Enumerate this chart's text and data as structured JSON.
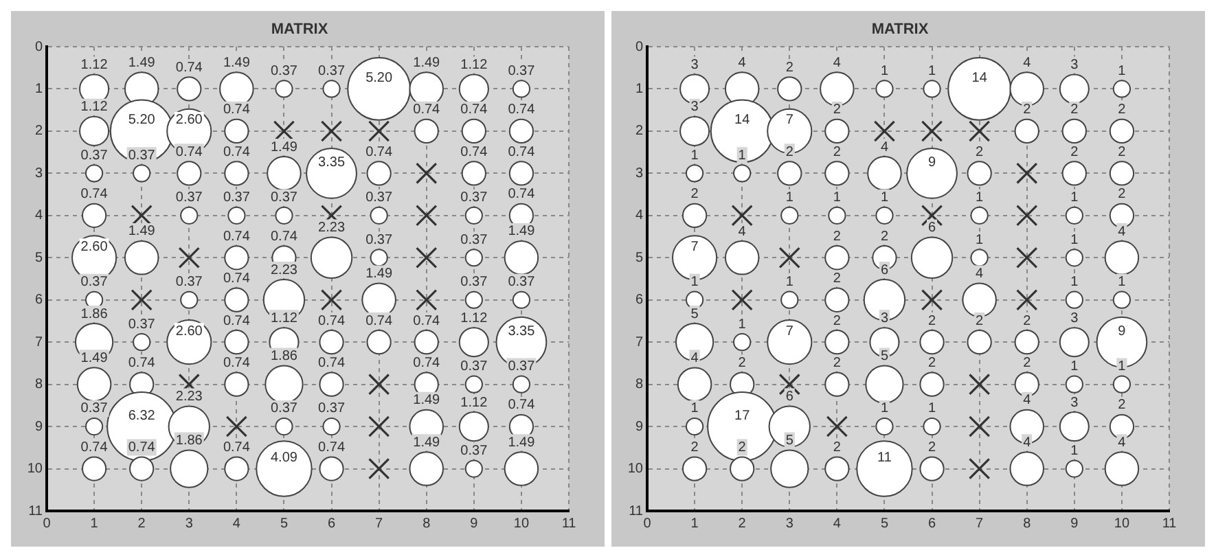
{
  "chart_data": [
    {
      "type": "bubble",
      "title": "MATRIX",
      "xlim": [
        0,
        11
      ],
      "xticks": [
        0,
        1,
        2,
        3,
        4,
        5,
        6,
        7,
        8,
        9,
        10,
        11
      ],
      "ylim": [
        11,
        0
      ],
      "yticks": [
        0,
        1,
        2,
        3,
        4,
        5,
        6,
        7,
        8,
        9,
        10,
        11
      ],
      "grid": true,
      "series": [
        {
          "type": "bubble",
          "marker": "circle",
          "color": "#ffffff",
          "x": [
            1,
            2,
            3,
            4,
            5,
            6,
            7,
            8,
            9,
            10,
            1,
            2,
            3,
            4,
            8,
            9,
            10,
            1,
            2,
            3,
            4,
            5,
            6,
            7,
            9,
            10,
            1,
            3,
            4,
            5,
            7,
            9,
            10,
            1,
            2,
            4,
            5,
            6,
            7,
            9,
            10,
            1,
            3,
            4,
            5,
            7,
            9,
            10,
            1,
            2,
            3,
            4,
            5,
            6,
            7,
            8,
            9,
            10,
            1,
            2,
            4,
            5,
            6,
            8,
            9,
            10,
            1,
            2,
            3,
            5,
            6,
            8,
            9,
            10,
            1,
            2,
            3,
            4,
            5,
            6,
            8,
            9,
            10
          ],
          "values": [
            1,
            1,
            1,
            1,
            1,
            1,
            1,
            1,
            1,
            1,
            2,
            2,
            2,
            2,
            2,
            2,
            2,
            3,
            3,
            3,
            3,
            3,
            3,
            3,
            3,
            3,
            4,
            4,
            4,
            4,
            4,
            4,
            4,
            5,
            5,
            5,
            5,
            5,
            5,
            5,
            5,
            6,
            6,
            6,
            6,
            6,
            6,
            6,
            7,
            7,
            7,
            7,
            7,
            7,
            7,
            7,
            7,
            7,
            8,
            8,
            8,
            8,
            8,
            8,
            8,
            8,
            9,
            9,
            9,
            9,
            9,
            9,
            9,
            9,
            10,
            10,
            10,
            10,
            10,
            10,
            10,
            10,
            10
          ],
          "sizes": [
            1.12,
            1.49,
            0.74,
            1.49,
            0.37,
            0.37,
            5.2,
            1.49,
            1.12,
            0.37,
            1.12,
            5.2,
            2.6,
            0.74,
            0.74,
            0.74,
            0.74,
            0.37,
            0.37,
            0.74,
            0.74,
            1.49,
            3.35,
            0.74,
            0.74,
            0.74,
            0.74,
            0.37,
            0.37,
            0.37,
            0.37,
            0.37,
            0.74,
            2.6,
            1.49,
            0.74,
            0.74,
            2.23,
            0.37,
            0.37,
            1.49,
            0.37,
            0.37,
            0.74,
            2.23,
            1.49,
            0.37,
            0.37,
            1.86,
            0.37,
            2.6,
            0.74,
            1.12,
            0.74,
            0.74,
            0.74,
            1.12,
            3.35,
            1.49,
            0.74,
            0.74,
            1.86,
            0.74,
            0.74,
            0.37,
            0.37,
            0.37,
            6.32,
            2.23,
            0.37,
            0.37,
            1.49,
            1.12,
            0.74,
            0.74,
            0.74,
            1.86,
            0.74,
            4.09,
            0.74,
            1.49,
            0.37,
            1.49
          ],
          "value_labels": [
            "1.12",
            "1.49",
            "0.74",
            "1.49",
            "0.37",
            "0.37",
            "5.20",
            "1.49",
            "1.12",
            "0.37",
            "1.12",
            "5.20",
            "2.60",
            "0.74",
            "0.74",
            "0.74",
            "0.74",
            "0.37",
            "0.37",
            "0.74",
            "0.74",
            "1.49",
            "3.35",
            "0.74",
            "0.74",
            "0.74",
            "0.74",
            "0.37",
            "0.37",
            "0.37",
            "0.37",
            "0.37",
            "0.74",
            "2.60",
            "1.49",
            "0.74",
            "0.74",
            "2.23",
            "0.37",
            "0.37",
            "1.49",
            "0.37",
            "0.37",
            "0.74",
            "2.23",
            "1.49",
            "0.37",
            "0.37",
            "1.86",
            "0.37",
            "2.60",
            "0.74",
            "1.12",
            "0.74",
            "0.74",
            "0.74",
            "1.12",
            "3.35",
            "1.49",
            "0.74",
            "0.74",
            "1.86",
            "0.74",
            "0.74",
            "0.37",
            "0.37",
            "0.37",
            "6.32",
            "2.23",
            "0.37",
            "0.37",
            "1.49",
            "1.12",
            "0.74",
            "0.74",
            "0.74",
            "1.86",
            "0.74",
            "4.09",
            "0.74",
            "1.49",
            "0.37",
            "1.49"
          ]
        },
        {
          "type": "scatter",
          "marker": "cross",
          "color": "#333333",
          "x": [
            5,
            6,
            7,
            8,
            2,
            6,
            8,
            3,
            8,
            2,
            6,
            8,
            3,
            7,
            4,
            7,
            7
          ],
          "values": [
            2,
            2,
            2,
            3,
            4,
            4,
            4,
            5,
            5,
            6,
            6,
            6,
            8,
            8,
            9,
            9,
            10
          ]
        }
      ]
    },
    {
      "type": "bubble",
      "title": "MATRIX",
      "xlim": [
        0,
        11
      ],
      "xticks": [
        0,
        1,
        2,
        3,
        4,
        5,
        6,
        7,
        8,
        9,
        10,
        11
      ],
      "ylim": [
        11,
        0
      ],
      "yticks": [
        0,
        1,
        2,
        3,
        4,
        5,
        6,
        7,
        8,
        9,
        10,
        11
      ],
      "grid": true,
      "series": [
        {
          "type": "bubble",
          "marker": "circle",
          "color": "#ffffff",
          "x": [
            1,
            2,
            3,
            4,
            5,
            6,
            7,
            8,
            9,
            10,
            1,
            2,
            3,
            4,
            8,
            9,
            10,
            1,
            2,
            3,
            4,
            5,
            6,
            7,
            9,
            10,
            1,
            3,
            4,
            5,
            7,
            9,
            10,
            1,
            2,
            4,
            5,
            6,
            7,
            9,
            10,
            1,
            3,
            4,
            5,
            7,
            9,
            10,
            1,
            2,
            3,
            4,
            5,
            6,
            7,
            8,
            9,
            10,
            1,
            2,
            4,
            5,
            6,
            8,
            9,
            10,
            1,
            2,
            3,
            5,
            6,
            8,
            9,
            10,
            1,
            2,
            3,
            4,
            5,
            6,
            8,
            9,
            10
          ],
          "values": [
            1,
            1,
            1,
            1,
            1,
            1,
            1,
            1,
            1,
            1,
            2,
            2,
            2,
            2,
            2,
            2,
            2,
            3,
            3,
            3,
            3,
            3,
            3,
            3,
            3,
            3,
            4,
            4,
            4,
            4,
            4,
            4,
            4,
            5,
            5,
            5,
            5,
            5,
            5,
            5,
            5,
            6,
            6,
            6,
            6,
            6,
            6,
            6,
            7,
            7,
            7,
            7,
            7,
            7,
            7,
            7,
            7,
            7,
            8,
            8,
            8,
            8,
            8,
            8,
            8,
            8,
            9,
            9,
            9,
            9,
            9,
            9,
            9,
            9,
            10,
            10,
            10,
            10,
            10,
            10,
            10,
            10,
            10
          ],
          "sizes": [
            3,
            4,
            2,
            4,
            1,
            1,
            14,
            4,
            3,
            1,
            3,
            14,
            7,
            2,
            2,
            2,
            2,
            1,
            1,
            2,
            2,
            4,
            9,
            2,
            2,
            2,
            2,
            1,
            1,
            1,
            1,
            1,
            2,
            7,
            4,
            2,
            2,
            6,
            1,
            1,
            4,
            1,
            1,
            2,
            6,
            4,
            1,
            1,
            5,
            1,
            7,
            2,
            3,
            2,
            2,
            2,
            3,
            9,
            4,
            2,
            2,
            5,
            2,
            2,
            1,
            1,
            1,
            17,
            6,
            1,
            1,
            4,
            3,
            2,
            2,
            2,
            5,
            2,
            11,
            2,
            4,
            1,
            4
          ],
          "value_labels": [
            "3",
            "4",
            "2",
            "4",
            "1",
            "1",
            "14",
            "4",
            "3",
            "1",
            "3",
            "14",
            "7",
            "2",
            "2",
            "2",
            "2",
            "1",
            "1",
            "2",
            "2",
            "4",
            "9",
            "2",
            "2",
            "2",
            "2",
            "1",
            "1",
            "1",
            "1",
            "1",
            "2",
            "7",
            "4",
            "2",
            "2",
            "6",
            "1",
            "1",
            "4",
            "1",
            "1",
            "2",
            "6",
            "4",
            "1",
            "1",
            "5",
            "1",
            "7",
            "2",
            "3",
            "2",
            "2",
            "2",
            "3",
            "9",
            "4",
            "2",
            "2",
            "5",
            "2",
            "2",
            "1",
            "1",
            "1",
            "17",
            "6",
            "1",
            "1",
            "4",
            "3",
            "2",
            "2",
            "2",
            "5",
            "2",
            "11",
            "2",
            "4",
            "1",
            "4"
          ]
        },
        {
          "type": "scatter",
          "marker": "cross",
          "color": "#333333",
          "x": [
            5,
            6,
            7,
            8,
            2,
            6,
            8,
            3,
            8,
            2,
            6,
            8,
            3,
            7,
            4,
            7,
            7
          ],
          "values": [
            2,
            2,
            2,
            3,
            4,
            4,
            4,
            5,
            5,
            6,
            6,
            6,
            8,
            8,
            9,
            9,
            10
          ]
        }
      ]
    }
  ]
}
